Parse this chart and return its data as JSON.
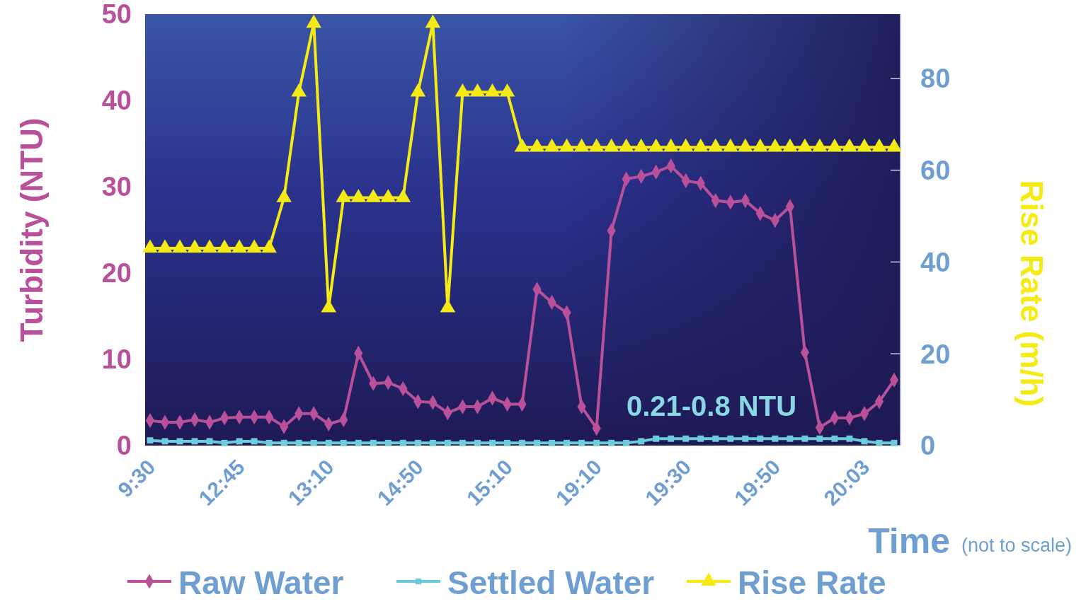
{
  "chart_data": {
    "type": "line",
    "xlabel": "Time",
    "ylabel": "Turbidity (NTU)",
    "y2label": "Rise Rate (m/h)",
    "annotations": [
      "0.21-0.8 NTU",
      "(not to scale)"
    ],
    "categories": [
      "9:30",
      null,
      null,
      null,
      null,
      null,
      "12:45",
      null,
      null,
      null,
      null,
      null,
      "13:10",
      null,
      null,
      null,
      null,
      null,
      "14:50",
      null,
      null,
      null,
      null,
      null,
      "15:10",
      null,
      null,
      null,
      null,
      null,
      "19:10",
      null,
      null,
      null,
      null,
      null,
      "19:30",
      null,
      null,
      null,
      null,
      null,
      "19:50",
      null,
      null,
      null,
      null,
      null,
      "20:03",
      null,
      null
    ],
    "ylim": [
      0,
      50
    ],
    "yticks": [
      0,
      10,
      20,
      30,
      40,
      50
    ],
    "y2lim": [
      0,
      94
    ],
    "y2ticks": [
      0,
      20,
      40,
      60,
      80
    ],
    "legend": "bottom",
    "grid": false,
    "series": [
      {
        "name": "Raw Water",
        "color": "#b9509a",
        "marker": "diamond",
        "values": [
          2.9,
          2.7,
          2.7,
          3.0,
          2.7,
          3.2,
          3.3,
          3.3,
          3.3,
          2.2,
          3.7,
          3.7,
          2.5,
          3.0,
          10.7,
          7.2,
          7.3,
          6.6,
          5.1,
          5.0,
          3.8,
          4.5,
          4.5,
          5.5,
          4.8,
          4.8,
          18.1,
          16.6,
          15.4,
          4.5,
          2.0,
          24.9,
          30.9,
          31.2,
          31.7,
          32.4,
          30.7,
          30.4,
          28.4,
          28.2,
          28.4,
          26.9,
          26.1,
          27.7,
          10.8,
          2.1,
          3.2,
          3.2,
          3.7,
          5.1,
          7.6
        ]
      },
      {
        "name": "Settled Water",
        "color": "#6ecbdc",
        "marker": "square",
        "values": [
          0.6,
          0.5,
          0.5,
          0.5,
          0.5,
          0.3,
          0.5,
          0.5,
          0.3,
          0.3,
          0.3,
          0.3,
          0.3,
          0.3,
          0.3,
          0.3,
          0.3,
          0.3,
          0.3,
          0.3,
          0.3,
          0.3,
          0.3,
          0.3,
          0.3,
          0.3,
          0.3,
          0.3,
          0.3,
          0.3,
          0.3,
          0.3,
          0.3,
          0.5,
          0.8,
          0.8,
          0.8,
          0.8,
          0.8,
          0.8,
          0.8,
          0.8,
          0.8,
          0.8,
          0.8,
          0.8,
          0.8,
          0.8,
          0.5,
          0.3,
          0.3
        ]
      },
      {
        "name": "Rise Rate",
        "color": "#f5eb14",
        "marker": "triangle",
        "axis": "y2",
        "values": [
          43,
          43,
          43,
          43,
          43,
          43,
          43,
          43,
          43,
          54,
          77,
          92,
          30,
          54,
          54,
          54,
          54,
          54,
          77,
          92,
          30,
          77,
          77,
          77,
          77,
          65,
          65,
          65,
          65,
          65,
          65,
          65,
          65,
          65,
          65,
          65,
          65,
          65,
          65,
          65,
          65,
          65,
          65,
          65,
          65,
          65,
          65,
          65,
          65,
          65,
          65
        ]
      }
    ]
  }
}
